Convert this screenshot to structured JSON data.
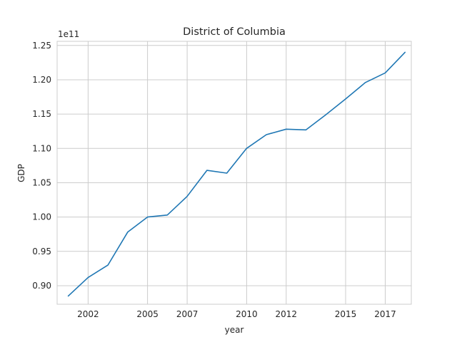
{
  "chart_data": {
    "type": "line",
    "title": "District of Columbia",
    "xlabel": "year",
    "ylabel": "GDP",
    "y_offset_label": "1e11",
    "x_ticks": [
      {
        "value": "2002-01-01",
        "label": "2002"
      },
      {
        "value": "2004-12-31",
        "label": "2005"
      },
      {
        "value": "2007-01-01",
        "label": "2007"
      },
      {
        "value": "2010-01-01",
        "label": "2010"
      },
      {
        "value": "2012-01-01",
        "label": "2012"
      },
      {
        "value": "2014-12-31",
        "label": "2015"
      },
      {
        "value": "2017-01-01",
        "label": "2017"
      }
    ],
    "y_ticks": [
      {
        "value": 0.9,
        "label": "0.90"
      },
      {
        "value": 0.95,
        "label": "0.95"
      },
      {
        "value": 1.0,
        "label": "1.00"
      },
      {
        "value": 1.05,
        "label": "1.05"
      },
      {
        "value": 1.1,
        "label": "1.10"
      },
      {
        "value": 1.15,
        "label": "1.15"
      },
      {
        "value": 1.2,
        "label": "1.20"
      },
      {
        "value": 1.25,
        "label": "1.25"
      }
    ],
    "xlim": [
      "2000-06-08",
      "2018-04-26"
    ],
    "ylim": [
      0.873,
      1.256
    ],
    "grid": true,
    "series": [
      {
        "color": "#1f77b4",
        "x": [
          "2000-12-31",
          "2002-01-01",
          "2002-12-31",
          "2003-12-31",
          "2004-12-31",
          "2005-12-31",
          "2006-12-31",
          "2007-12-31",
          "2008-12-31",
          "2009-12-31",
          "2010-12-31",
          "2011-12-31",
          "2012-12-31",
          "2013-12-31",
          "2014-12-31",
          "2015-12-31",
          "2016-12-31",
          "2017-12-31"
        ],
        "values": [
          0.885,
          0.912,
          0.93,
          0.978,
          1.0,
          1.003,
          1.03,
          1.068,
          1.064,
          1.1,
          1.12,
          1.128,
          1.127,
          1.149,
          1.172,
          1.196,
          1.21,
          1.24
        ]
      }
    ]
  }
}
